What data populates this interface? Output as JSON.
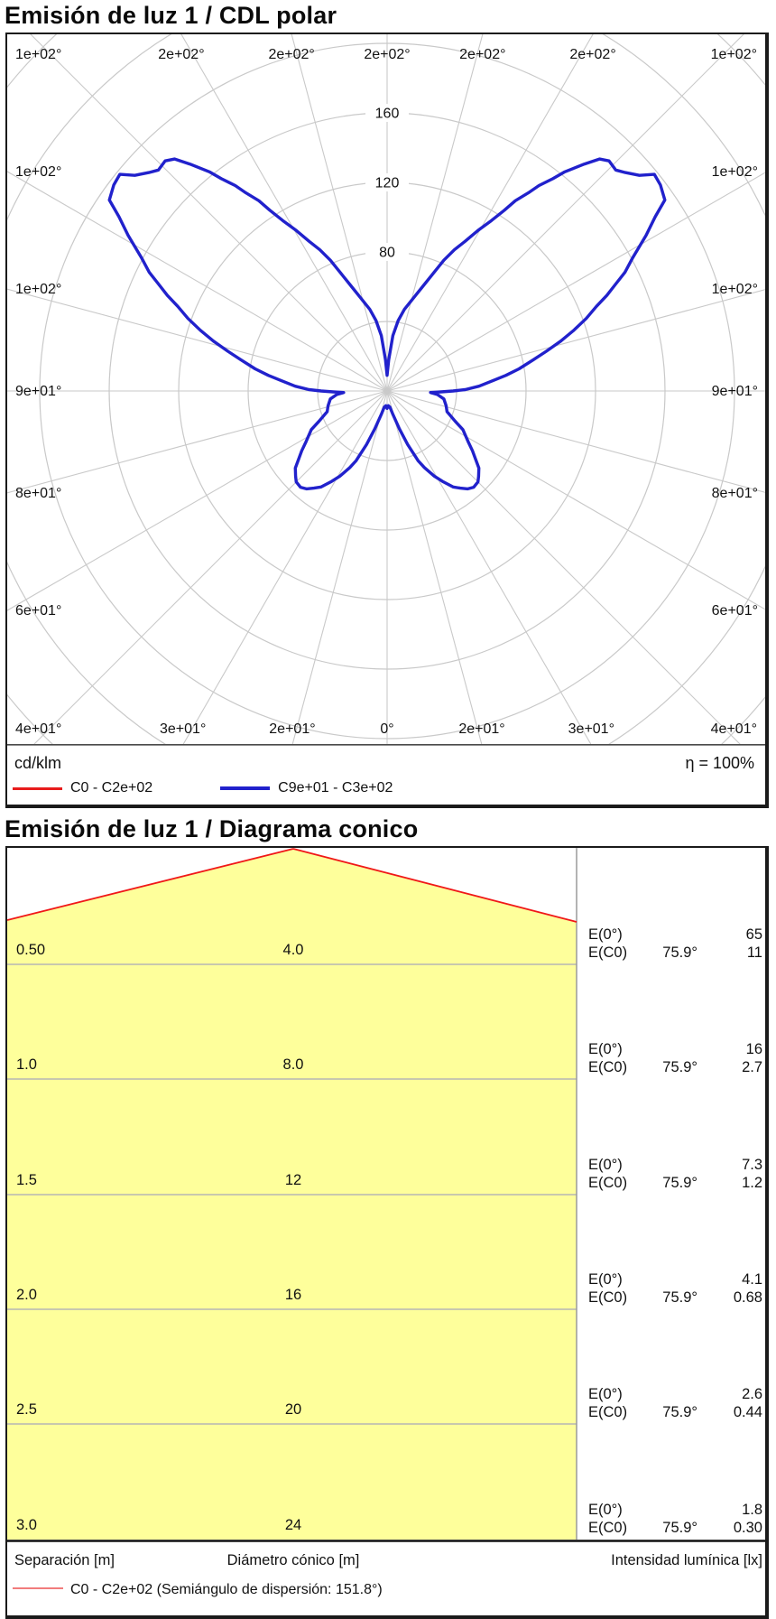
{
  "polar_section": {
    "title": "Emisión de luz 1 / CDL polar",
    "unit_label": "cd/klm",
    "efficiency_label": "η = 100%",
    "legend": [
      {
        "label": "C0 - C2e+02",
        "color": "#e81c1c"
      },
      {
        "label": "C9e+01 - C3e+02",
        "color": "#2121cc"
      }
    ],
    "radial_tick_labels": [
      "80",
      "120",
      "160"
    ],
    "angle_labels_top": [
      "1e+02°",
      "2e+02°",
      "2e+02°",
      "2e+02°",
      "2e+02°",
      "2e+02°",
      "1e+02°"
    ],
    "angle_labels_bottom": [
      "4e+01°",
      "3e+01°",
      "2e+01°",
      "0°",
      "2e+01°",
      "3e+01°",
      "4e+01°"
    ],
    "angle_labels_left": [
      "1e+02°",
      "1e+02°",
      "9e+01°",
      "8e+01°",
      "6e+01°"
    ],
    "angle_labels_right": [
      "1e+02°",
      "1e+02°",
      "9e+01°",
      "8e+01°",
      "6e+01°"
    ]
  },
  "cone_section": {
    "title": "Emisión de luz 1 / Diagrama conico",
    "rows": [
      {
        "separation": "0.50",
        "diameter": "4.0",
        "e0_label": "E(0°)",
        "ec0_label": "E(C0)",
        "angle": "75.9°",
        "e0": "65",
        "ec0": "11"
      },
      {
        "separation": "1.0",
        "diameter": "8.0",
        "e0_label": "E(0°)",
        "ec0_label": "E(C0)",
        "angle": "75.9°",
        "e0": "16",
        "ec0": "2.7"
      },
      {
        "separation": "1.5",
        "diameter": "12",
        "e0_label": "E(0°)",
        "ec0_label": "E(C0)",
        "angle": "75.9°",
        "e0": "7.3",
        "ec0": "1.2"
      },
      {
        "separation": "2.0",
        "diameter": "16",
        "e0_label": "E(0°)",
        "ec0_label": "E(C0)",
        "angle": "75.9°",
        "e0": "4.1",
        "ec0": "0.68"
      },
      {
        "separation": "2.5",
        "diameter": "20",
        "e0_label": "E(0°)",
        "ec0_label": "E(C0)",
        "angle": "75.9°",
        "e0": "2.6",
        "ec0": "0.44"
      },
      {
        "separation": "3.0",
        "diameter": "24",
        "e0_label": "E(0°)",
        "ec0_label": "E(C0)",
        "angle": "75.9°",
        "e0": "1.8",
        "ec0": "0.30"
      }
    ],
    "footer": {
      "col_separation": "Separación [m]",
      "col_diameter": "Diámetro cónico [m]",
      "col_intensity": "Intensidad lumínica [lx]"
    },
    "legend_label": "C0 - C2e+02 (Semiángulo de dispersión: 151.8°)",
    "colors": {
      "cone_fill": "#feff9b",
      "cone_edge": "#f01818",
      "legend_line": "#ef6a6a"
    }
  },
  "chart_data": [
    {
      "type": "line",
      "subtype": "polar-photometric",
      "title": "Emisión de luz 1 / CDL polar",
      "units": "cd/klm",
      "efficiency_percent": 100,
      "series": [
        {
          "name": "C0 - C2e+02",
          "color": "#e81c1c",
          "note": "coincides with C90-C270 curve, drawn underneath"
        },
        {
          "name": "C9e+01 - C3e+02",
          "color": "#2121cc"
        }
      ],
      "gamma_step_deg": 15,
      "radial_ticks": [
        40,
        80,
        120,
        160,
        200,
        240,
        280
      ],
      "labeled_radial_ticks": [
        80,
        120,
        160
      ],
      "symmetric": true,
      "samples_gamma_deg_intensity": [
        [
          0,
          10
        ],
        [
          5,
          8.5
        ],
        [
          10,
          9.5
        ],
        [
          14,
          14
        ],
        [
          18,
          23
        ],
        [
          21,
          33
        ],
        [
          24,
          44
        ],
        [
          26,
          49
        ],
        [
          29,
          56
        ],
        [
          31.5,
          61
        ],
        [
          34.5,
          67
        ],
        [
          37,
          70
        ],
        [
          39.5,
          73
        ],
        [
          42,
          74.5
        ],
        [
          45,
          74
        ],
        [
          47,
          72
        ],
        [
          50,
          69
        ],
        [
          52,
          65
        ],
        [
          55,
          60
        ],
        [
          58,
          55
        ],
        [
          63,
          49
        ],
        [
          66,
          43
        ],
        [
          71,
          36.5
        ],
        [
          76,
          35
        ],
        [
          82,
          33
        ],
        [
          86,
          29
        ],
        [
          88,
          25
        ],
        [
          89,
          31
        ],
        [
          90,
          38
        ],
        [
          91,
          45
        ],
        [
          93,
          53
        ],
        [
          95.5,
          61
        ],
        [
          97.5,
          69
        ],
        [
          99.5,
          77
        ],
        [
          102,
          86
        ],
        [
          104,
          94.5
        ],
        [
          106,
          104
        ],
        [
          108,
          113
        ],
        [
          110,
          122
        ],
        [
          112,
          130
        ],
        [
          113.5,
          138
        ],
        [
          115,
          145
        ],
        [
          116.5,
          153
        ],
        [
          118.5,
          161
        ],
        [
          121,
          174
        ],
        [
          123,
          184
        ],
        [
          124.5,
          194
        ],
        [
          127,
          197
        ],
        [
          129,
          198
        ],
        [
          130.5,
          191
        ],
        [
          132.5,
          186
        ],
        [
          134,
          183
        ],
        [
          136,
          184
        ],
        [
          137.5,
          181
        ],
        [
          139,
          173
        ],
        [
          141,
          162
        ],
        [
          142,
          155
        ],
        [
          143.5,
          147
        ],
        [
          144.5,
          140
        ],
        [
          146,
          132
        ],
        [
          147,
          124
        ],
        [
          148.5,
          115
        ],
        [
          150.5,
          106
        ],
        [
          152.5,
          97
        ],
        [
          154.5,
          90
        ],
        [
          156.5,
          82
        ],
        [
          158.5,
          73
        ],
        [
          161,
          64
        ],
        [
          164,
          56
        ],
        [
          168,
          48
        ],
        [
          171,
          41
        ],
        [
          174,
          32
        ],
        [
          177,
          18
        ],
        [
          180,
          9
        ]
      ]
    },
    {
      "type": "table",
      "subtype": "cone-diagram",
      "title": "Emisión de luz 1 / Diagrama conico",
      "half_angle_deg": 75.9,
      "full_dispersion_angle_deg": 151.8,
      "columns": [
        "separation_m",
        "cone_diameter_m",
        "E0_lx",
        "EC0_lx"
      ],
      "rows": [
        {
          "separation_m": 0.5,
          "cone_diameter_m": 4.0,
          "E0_lx": 65,
          "EC0_lx": 11
        },
        {
          "separation_m": 1.0,
          "cone_diameter_m": 8.0,
          "E0_lx": 16,
          "EC0_lx": 2.7
        },
        {
          "separation_m": 1.5,
          "cone_diameter_m": 12,
          "E0_lx": 7.3,
          "EC0_lx": 1.2
        },
        {
          "separation_m": 2.0,
          "cone_diameter_m": 16,
          "E0_lx": 4.1,
          "EC0_lx": 0.68
        },
        {
          "separation_m": 2.5,
          "cone_diameter_m": 20,
          "E0_lx": 2.6,
          "EC0_lx": 0.44
        },
        {
          "separation_m": 3.0,
          "cone_diameter_m": 24,
          "E0_lx": 1.8,
          "EC0_lx": 0.3
        }
      ]
    }
  ]
}
